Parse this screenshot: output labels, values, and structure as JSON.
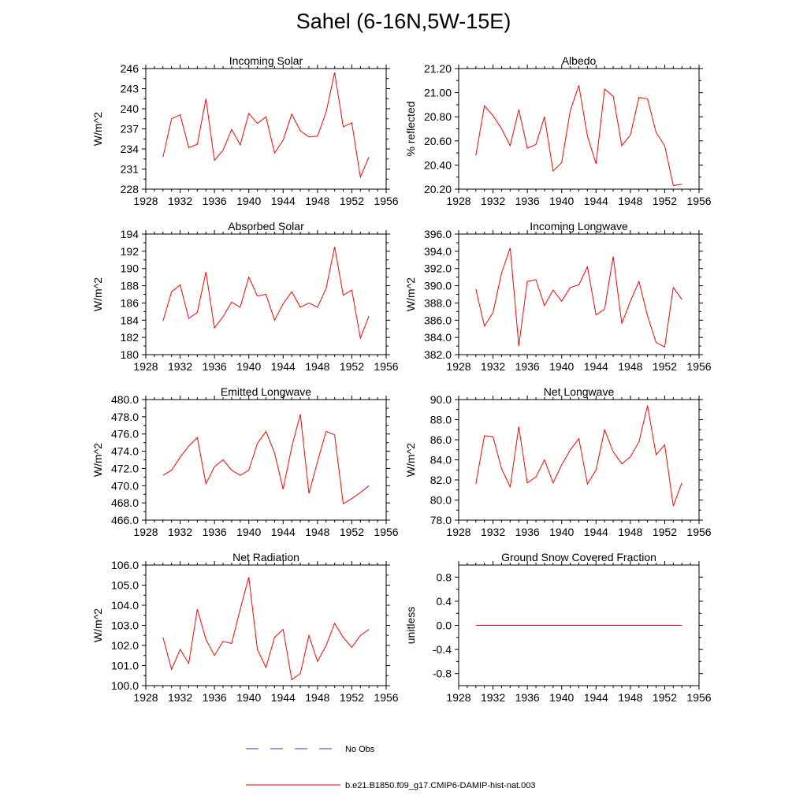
{
  "page": {
    "title": "Sahel (6-16N,5W-15E)"
  },
  "legend": {
    "entries": [
      {
        "label": "No Obs",
        "style": "dashed",
        "color": "#3a3aaa"
      },
      {
        "label": "b.e21.B1850.f09_g17.CMIP6-DAMIP-hist-nat.003",
        "style": "solid",
        "color": "#ff0000"
      }
    ]
  },
  "chart_data": [
    {
      "type": "line",
      "title": "Incoming Solar",
      "ylabel": "W/m^2",
      "xlim": [
        1928,
        1956
      ],
      "xticks": [
        1928,
        1932,
        1936,
        1940,
        1944,
        1948,
        1952,
        1956
      ],
      "ylim": [
        228,
        246
      ],
      "yticks": [
        228,
        231,
        234,
        237,
        240,
        243,
        246
      ],
      "ydecimals": 0,
      "series": [
        {
          "color": "#ff0000",
          "x": [
            1930,
            1931,
            1932,
            1933,
            1934,
            1935,
            1936,
            1937,
            1938,
            1939,
            1940,
            1941,
            1942,
            1943,
            1944,
            1945,
            1946,
            1947,
            1948,
            1949,
            1950,
            1951,
            1952,
            1953,
            1954
          ],
          "values": [
            232.8,
            238.5,
            239.1,
            234.2,
            234.7,
            241.5,
            232.3,
            233.8,
            236.9,
            234.6,
            239.3,
            237.8,
            238.8,
            233.4,
            235.3,
            239.2,
            236.7,
            235.8,
            235.9,
            239.5,
            245.4,
            237.3,
            237.9,
            229.8,
            232.8
          ]
        }
      ]
    },
    {
      "type": "line",
      "title": "Albedo",
      "ylabel": "% reflected",
      "xlim": [
        1928,
        1956
      ],
      "xticks": [
        1928,
        1932,
        1936,
        1940,
        1944,
        1948,
        1952,
        1956
      ],
      "ylim": [
        20.2,
        21.2
      ],
      "yticks": [
        20.2,
        20.4,
        20.6,
        20.8,
        21.0,
        21.2
      ],
      "ydecimals": 2,
      "series": [
        {
          "color": "#ff0000",
          "x": [
            1930,
            1931,
            1932,
            1933,
            1934,
            1935,
            1936,
            1937,
            1938,
            1939,
            1940,
            1941,
            1942,
            1943,
            1944,
            1945,
            1946,
            1947,
            1948,
            1949,
            1950,
            1951,
            1952,
            1953,
            1954
          ],
          "values": [
            20.48,
            20.89,
            20.81,
            20.7,
            20.56,
            20.86,
            20.54,
            20.57,
            20.8,
            20.35,
            20.42,
            20.85,
            21.06,
            20.64,
            20.41,
            21.03,
            20.97,
            20.56,
            20.65,
            20.96,
            20.95,
            20.67,
            20.56,
            20.23,
            20.24
          ]
        }
      ]
    },
    {
      "type": "line",
      "title": "Absorbed Solar",
      "ylabel": "W/m^2",
      "xlim": [
        1928,
        1956
      ],
      "xticks": [
        1928,
        1932,
        1936,
        1940,
        1944,
        1948,
        1952,
        1956
      ],
      "ylim": [
        180,
        194
      ],
      "yticks": [
        180,
        182,
        184,
        186,
        188,
        190,
        192,
        194
      ],
      "ydecimals": 0,
      "series": [
        {
          "color": "#ff0000",
          "x": [
            1930,
            1931,
            1932,
            1933,
            1934,
            1935,
            1936,
            1937,
            1938,
            1939,
            1940,
            1941,
            1942,
            1943,
            1944,
            1945,
            1946,
            1947,
            1948,
            1949,
            1950,
            1951,
            1952,
            1953,
            1954
          ],
          "values": [
            183.9,
            187.3,
            188.1,
            184.2,
            184.9,
            189.6,
            183.1,
            184.4,
            186.1,
            185.5,
            189.0,
            186.8,
            187.0,
            184.0,
            185.9,
            187.3,
            185.5,
            186.0,
            185.5,
            187.7,
            192.5,
            186.9,
            187.5,
            181.9,
            184.5
          ]
        }
      ]
    },
    {
      "type": "line",
      "title": "Incoming Longwave",
      "ylabel": "W/m^2",
      "xlim": [
        1928,
        1956
      ],
      "xticks": [
        1928,
        1932,
        1936,
        1940,
        1944,
        1948,
        1952,
        1956
      ],
      "ylim": [
        382,
        396
      ],
      "yticks": [
        382,
        384,
        386,
        388,
        390,
        392,
        394,
        396
      ],
      "ydecimals": 1,
      "series": [
        {
          "color": "#ff0000",
          "x": [
            1930,
            1931,
            1932,
            1933,
            1934,
            1935,
            1936,
            1937,
            1938,
            1939,
            1940,
            1941,
            1942,
            1943,
            1944,
            1945,
            1946,
            1947,
            1948,
            1949,
            1950,
            1951,
            1952,
            1953,
            1954
          ],
          "values": [
            389.6,
            385.3,
            386.9,
            391.5,
            394.4,
            383.0,
            390.5,
            390.7,
            387.7,
            389.5,
            388.2,
            389.8,
            390.1,
            392.2,
            386.6,
            387.3,
            393.4,
            385.6,
            388.2,
            390.5,
            386.5,
            383.4,
            382.9,
            389.8,
            388.4
          ]
        }
      ]
    },
    {
      "type": "line",
      "title": "Emitted Longwave",
      "ylabel": "W/m^2",
      "xlim": [
        1928,
        1956
      ],
      "xticks": [
        1928,
        1932,
        1936,
        1940,
        1944,
        1948,
        1952,
        1956
      ],
      "ylim": [
        466,
        480
      ],
      "yticks": [
        466,
        468,
        470,
        472,
        474,
        476,
        478,
        480
      ],
      "ydecimals": 1,
      "series": [
        {
          "color": "#ff0000",
          "x": [
            1930,
            1931,
            1932,
            1933,
            1934,
            1935,
            1936,
            1937,
            1938,
            1939,
            1940,
            1941,
            1942,
            1943,
            1944,
            1945,
            1946,
            1947,
            1948,
            1949,
            1950,
            1951,
            1952,
            1953,
            1954
          ],
          "values": [
            471.2,
            471.8,
            473.3,
            474.6,
            475.6,
            470.2,
            472.2,
            473.0,
            471.8,
            471.2,
            471.8,
            474.9,
            476.3,
            473.8,
            469.6,
            474.5,
            478.3,
            469.1,
            472.8,
            476.3,
            475.9,
            467.9,
            468.5,
            469.2,
            470.0
          ]
        }
      ]
    },
    {
      "type": "line",
      "title": "Net Longwave",
      "ylabel": "W/m^2",
      "xlim": [
        1928,
        1956
      ],
      "xticks": [
        1928,
        1932,
        1936,
        1940,
        1944,
        1948,
        1952,
        1956
      ],
      "ylim": [
        78,
        90
      ],
      "yticks": [
        78,
        80,
        82,
        84,
        86,
        88,
        90
      ],
      "ydecimals": 1,
      "series": [
        {
          "color": "#ff0000",
          "x": [
            1930,
            1931,
            1932,
            1933,
            1934,
            1935,
            1936,
            1937,
            1938,
            1939,
            1940,
            1941,
            1942,
            1943,
            1944,
            1945,
            1946,
            1947,
            1948,
            1949,
            1950,
            1951,
            1952,
            1953,
            1954
          ],
          "values": [
            81.6,
            86.4,
            86.3,
            83.1,
            81.3,
            87.3,
            81.7,
            82.3,
            84.0,
            81.7,
            83.5,
            85.0,
            86.1,
            81.6,
            83.0,
            87.0,
            84.8,
            83.6,
            84.3,
            85.8,
            89.4,
            84.5,
            85.5,
            79.4,
            81.7
          ]
        }
      ]
    },
    {
      "type": "line",
      "title": "Net Radiation",
      "ylabel": "W/m^2",
      "xlim": [
        1928,
        1956
      ],
      "xticks": [
        1928,
        1932,
        1936,
        1940,
        1944,
        1948,
        1952,
        1956
      ],
      "ylim": [
        100,
        106
      ],
      "yticks": [
        100,
        101,
        102,
        103,
        104,
        105,
        106
      ],
      "ydecimals": 1,
      "series": [
        {
          "color": "#ff0000",
          "x": [
            1930,
            1931,
            1932,
            1933,
            1934,
            1935,
            1936,
            1937,
            1938,
            1939,
            1940,
            1941,
            1942,
            1943,
            1944,
            1945,
            1946,
            1947,
            1948,
            1949,
            1950,
            1951,
            1952,
            1953,
            1954
          ],
          "values": [
            102.4,
            100.8,
            101.8,
            101.1,
            103.8,
            102.3,
            101.5,
            102.2,
            102.1,
            103.8,
            105.4,
            101.8,
            100.9,
            102.4,
            102.8,
            100.3,
            100.6,
            102.5,
            101.2,
            102.0,
            103.1,
            102.4,
            101.9,
            102.5,
            102.8
          ]
        }
      ]
    },
    {
      "type": "line",
      "title": "Ground Snow Covered Fraction",
      "ylabel": "unitless",
      "xlim": [
        1928,
        1956
      ],
      "xticks": [
        1928,
        1932,
        1936,
        1940,
        1944,
        1948,
        1952,
        1956
      ],
      "ylim": [
        -1.0,
        1.0
      ],
      "yticks": [
        -0.8,
        -0.4,
        0.0,
        0.4,
        0.8
      ],
      "ydecimals": 1,
      "series": [
        {
          "color": "#ff0000",
          "x": [
            1930,
            1931,
            1932,
            1933,
            1934,
            1935,
            1936,
            1937,
            1938,
            1939,
            1940,
            1941,
            1942,
            1943,
            1944,
            1945,
            1946,
            1947,
            1948,
            1949,
            1950,
            1951,
            1952,
            1953,
            1954
          ],
          "values": [
            0,
            0,
            0,
            0,
            0,
            0,
            0,
            0,
            0,
            0,
            0,
            0,
            0,
            0,
            0,
            0,
            0,
            0,
            0,
            0,
            0,
            0,
            0,
            0,
            0
          ]
        }
      ]
    }
  ]
}
